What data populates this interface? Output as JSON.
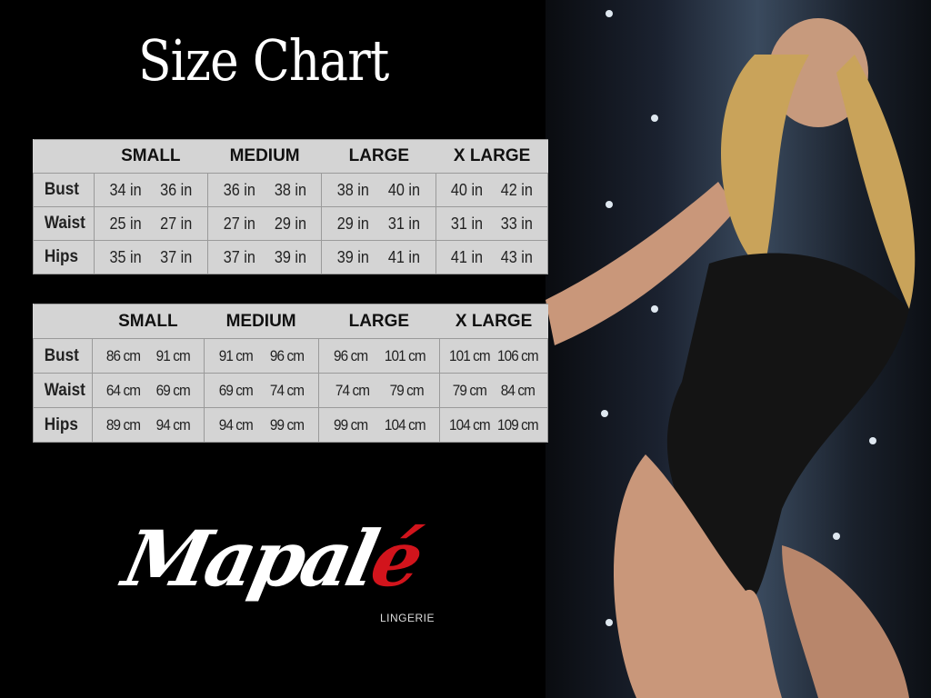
{
  "title": "Size Chart",
  "brand": {
    "name_main": "Mapal",
    "name_accent": "é",
    "subtitle": "LINGERIE",
    "accent_color": "#d2141c"
  },
  "sizes": [
    "SMALL",
    "MEDIUM",
    "LARGE",
    "X LARGE"
  ],
  "inches_table": {
    "rows": [
      {
        "label": "Bust",
        "values": [
          "34 in",
          "36 in",
          "36 in",
          "38 in",
          "38 in",
          "40 in",
          "40 in",
          "42 in"
        ]
      },
      {
        "label": "Waist",
        "values": [
          "25 in",
          "27 in",
          "27 in",
          "29 in",
          "29 in",
          "31 in",
          "31 in",
          "33 in"
        ]
      },
      {
        "label": "Hips",
        "values": [
          "35 in",
          "37 in",
          "37 in",
          "39 in",
          "39 in",
          "41 in",
          "41 in",
          "43 in"
        ]
      }
    ]
  },
  "cm_table": {
    "rows": [
      {
        "label": "Bust",
        "values": [
          "86 cm",
          "91 cm",
          "91 cm",
          "96 cm",
          "96 cm",
          "101 cm",
          "101 cm",
          "106 cm"
        ]
      },
      {
        "label": "Waist",
        "values": [
          "64 cm",
          "69 cm",
          "69 cm",
          "74 cm",
          "74 cm",
          "79 cm",
          "79 cm",
          "84 cm"
        ]
      },
      {
        "label": "Hips",
        "values": [
          "89 cm",
          "94 cm",
          "94 cm",
          "99 cm",
          "99 cm",
          "104 cm",
          "104 cm",
          "109 cm"
        ]
      }
    ]
  }
}
